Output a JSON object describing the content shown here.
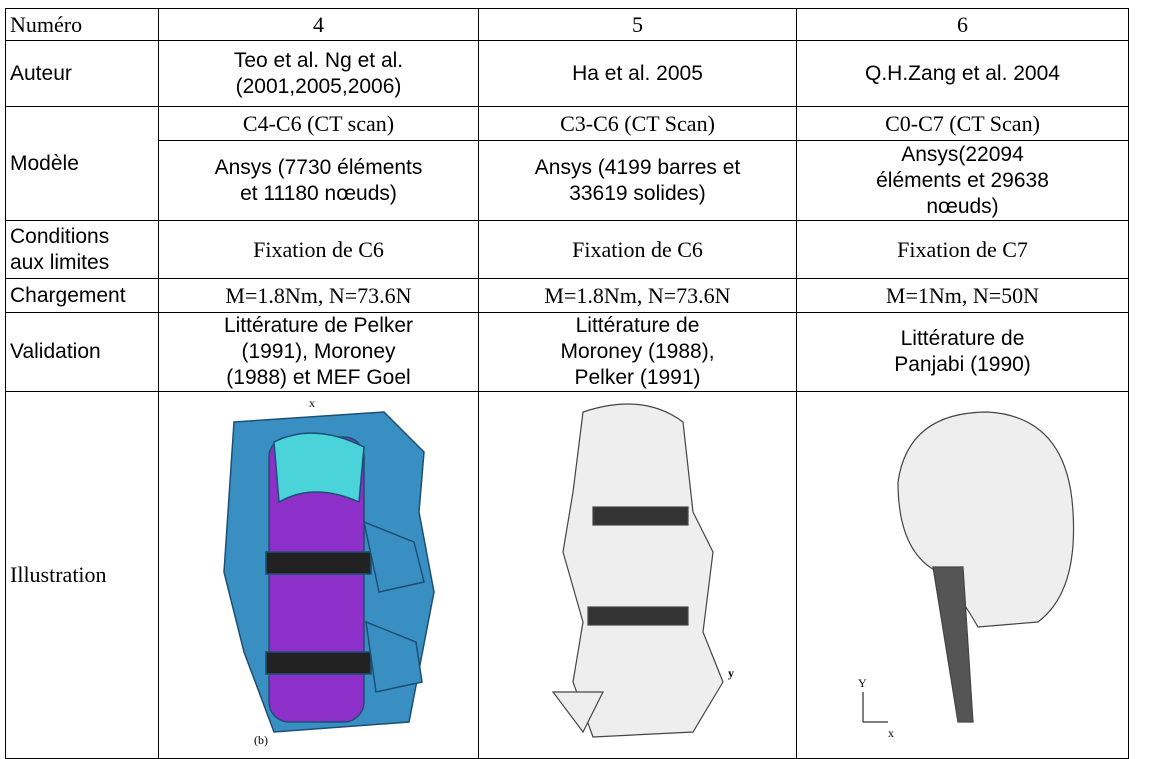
{
  "table": {
    "numero": {
      "label": "Numéro",
      "cells": [
        "4",
        "5",
        "6"
      ]
    },
    "auteur": {
      "label": "Auteur",
      "cells": [
        [
          "Teo et al. Ng et al.",
          "(2001,2005,2006)"
        ],
        [
          "Ha et al. 2005"
        ],
        [
          "Q.H.Zang et al. 2004"
        ]
      ]
    },
    "modele": {
      "label": "Modèle",
      "scan": [
        "C4-C6 (CT scan)",
        "C3-C6 (CT Scan)",
        "C0-C7 (CT Scan)"
      ],
      "ansys": [
        [
          "Ansys (7730 éléments",
          "et 11180 nœuds)"
        ],
        [
          "Ansys (4199 barres et",
          "33619 solides)"
        ],
        [
          "Ansys(22094",
          "éléments et 29638",
          "nœuds)"
        ]
      ]
    },
    "conditions": {
      "label": [
        "Conditions",
        "aux limites"
      ],
      "cells": [
        "Fixation de C6",
        "Fixation de C6",
        "Fixation de C7"
      ]
    },
    "chargement": {
      "label": "Chargement",
      "cells": [
        "M=1.8Nm, N=73.6N",
        "M=1.8Nm, N=73.6N",
        "M=1Nm, N=50N"
      ]
    },
    "validation": {
      "label": "Validation",
      "cells": [
        [
          "Littérature de Pelker",
          "(1991), Moroney",
          "(1988) et MEF Goel"
        ],
        [
          "Littérature de",
          "Moroney (1988),",
          "Pelker (1991)"
        ],
        [
          "Littérature de",
          "Panjabi (1990)"
        ]
      ]
    },
    "illustration": {
      "label": "Illustration",
      "marks": [
        [
          "x",
          "(b)"
        ],
        [
          "y"
        ],
        [
          "Y",
          "x"
        ]
      ]
    }
  }
}
